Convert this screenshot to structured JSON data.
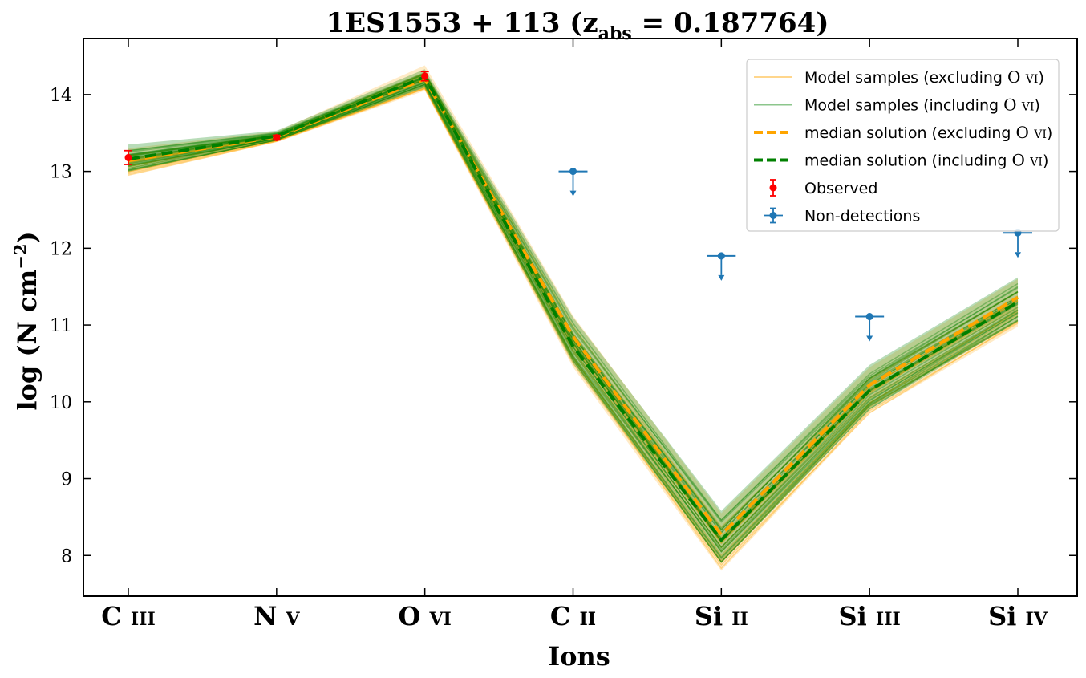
{
  "chart_data": {
    "type": "line",
    "title": "1ES1553 + 113 (z",
    "title_sub": "abs",
    "title_tail": " = 0.187764)",
    "xlabel": "Ions",
    "ylabel": "log (N cm",
    "ylabel_sup": "−2",
    "ylabel_tail": ")",
    "categories": [
      {
        "element": "C",
        "stage": "III"
      },
      {
        "element": "N",
        "stage": "V"
      },
      {
        "element": "O",
        "stage": "VI"
      },
      {
        "element": "C",
        "stage": "II"
      },
      {
        "element": "Si",
        "stage": "II"
      },
      {
        "element": "Si",
        "stage": "III"
      },
      {
        "element": "Si",
        "stage": "IV"
      }
    ],
    "ylim": [
      7.47,
      14.73
    ],
    "yticks": [
      "8",
      "9",
      "10",
      "11",
      "12",
      "13",
      "14"
    ],
    "ytick_values": [
      8,
      9,
      10,
      11,
      12,
      13,
      14
    ],
    "grid": false,
    "legend_position": "top-right",
    "series": [
      {
        "name": "median solution (excluding O VI)",
        "color": "#ffa500",
        "style": "dashed",
        "values": [
          13.14,
          13.45,
          14.2,
          10.85,
          8.27,
          10.22,
          11.36
        ]
      },
      {
        "name": "median solution (including O VI)",
        "color": "#008000",
        "style": "dashed",
        "values": [
          13.16,
          13.46,
          14.23,
          10.72,
          8.2,
          10.15,
          11.3
        ]
      }
    ],
    "model_samples": [
      {
        "name": "Model samples (excluding O VI)",
        "color": "#ffa500",
        "low": [
          12.95,
          13.38,
          14.05,
          10.45,
          7.8,
          9.85,
          10.98
        ],
        "high": [
          13.3,
          13.52,
          14.38,
          11.12,
          8.55,
          10.45,
          11.6
        ]
      },
      {
        "name": "Model samples (including O VI)",
        "color": "#008000",
        "low": [
          13.0,
          13.4,
          14.1,
          10.5,
          7.9,
          9.9,
          11.05
        ],
        "high": [
          13.35,
          13.53,
          14.33,
          11.1,
          8.58,
          10.48,
          11.62
        ]
      }
    ],
    "observed": {
      "name": "Observed",
      "color": "#ff0000",
      "points": [
        {
          "x": "C III",
          "y": 13.18,
          "err": 0.09
        },
        {
          "x": "N V",
          "y": 13.44,
          "err": 0.03
        },
        {
          "x": "O VI",
          "y": 14.24,
          "err": 0.06
        }
      ]
    },
    "non_detections": {
      "name": "Non-detections",
      "color": "#1f77b4",
      "points": [
        {
          "x": "C II",
          "y": 13.0
        },
        {
          "x": "Si II",
          "y": 11.9
        },
        {
          "x": "Si III",
          "y": 11.11
        },
        {
          "x": "Si IV",
          "y": 12.2
        }
      ]
    },
    "legend": [
      {
        "label": "Model samples (excluding",
        "ion": "O",
        "stage": "VI",
        "close": ")",
        "kind": "thin",
        "color": "#ffa500"
      },
      {
        "label": "Model samples (including",
        "ion": "O",
        "stage": "VI",
        "close": ")",
        "kind": "thin",
        "color": "#008000"
      },
      {
        "label": "median solution (excluding",
        "ion": "O",
        "stage": "VI",
        "close": ")",
        "kind": "dashed",
        "color": "#ffa500"
      },
      {
        "label": "median solution (including",
        "ion": "O",
        "stage": "VI",
        "close": ")",
        "kind": "dashed",
        "color": "#008000"
      },
      {
        "label": "Observed",
        "ion": "",
        "stage": "",
        "close": "",
        "kind": "observed",
        "color": "#ff0000"
      },
      {
        "label": "Non-detections",
        "ion": "",
        "stage": "",
        "close": "",
        "kind": "nondetect",
        "color": "#1f77b4"
      }
    ]
  }
}
